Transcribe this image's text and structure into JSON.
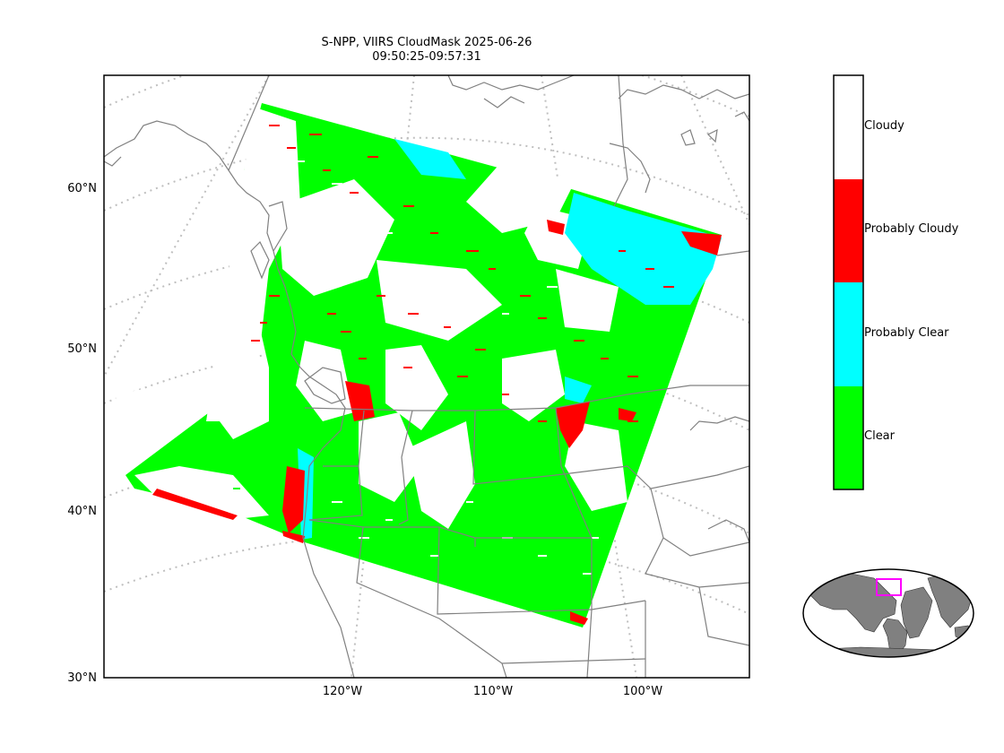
{
  "title_line1": "S-NPP, VIIRS CloudMask 2025-06-26",
  "title_line2": "09:50:25-09:57:31",
  "lat_labels": [
    "60°N",
    "50°N",
    "40°N",
    "30°N"
  ],
  "lon_labels": [
    "120°W",
    "110°W",
    "100°W"
  ],
  "legend": {
    "categories": [
      "Cloudy",
      "Probably Cloudy",
      "Probably Clear",
      "Clear"
    ],
    "colors": {
      "cloudy": "#ffffff",
      "probably_cloudy": "#ff0000",
      "probably_clear": "#00ffff",
      "clear": "#00ff00"
    }
  },
  "colors": {
    "coastline": "#808080",
    "graticule": "#bfbfbf",
    "land_inset": "#808080",
    "inset_box": "#ff00ff"
  }
}
